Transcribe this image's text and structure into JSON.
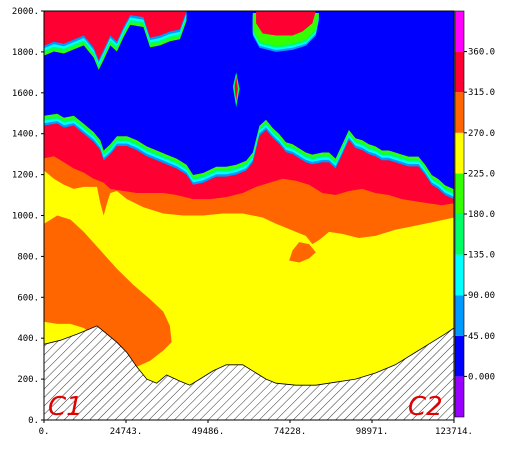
{
  "chart_data": {
    "type": "heatmap",
    "title": "",
    "xlabel": "",
    "ylabel": "",
    "x_ticks": [
      "0.",
      "24743.",
      "49486.",
      "74228.",
      "98971.",
      "123714."
    ],
    "y_ticks": [
      "0.",
      "200.",
      "400.",
      "600.",
      "800.",
      "1000.",
      "1200.",
      "1400.",
      "1600.",
      "1800.",
      "2000."
    ],
    "xlim": [
      0,
      123714
    ],
    "ylim": [
      0,
      2000
    ],
    "corner_labels": {
      "left": "C1",
      "right": "C2"
    },
    "colorbar": {
      "labels": [
        "0.000",
        "45.00",
        "90.00",
        "135.0",
        "180.0",
        "225.0",
        "270.0",
        "315.0",
        "360.0"
      ],
      "range": [
        -45,
        405
      ],
      "bands": [
        {
          "from": -45,
          "to": 0,
          "color": "#9900ff"
        },
        {
          "from": 0,
          "to": 45,
          "color": "#0000ff"
        },
        {
          "from": 45,
          "to": 90,
          "color": "#0099ff"
        },
        {
          "from": 90,
          "to": 135,
          "color": "#00ffff"
        },
        {
          "from": 135,
          "to": 180,
          "color": "#00ff66"
        },
        {
          "from": 180,
          "to": 225,
          "color": "#33ff00"
        },
        {
          "from": 225,
          "to": 270,
          "color": "#ffff00"
        },
        {
          "from": 270,
          "to": 315,
          "color": "#ff6600"
        },
        {
          "from": 315,
          "to": 360,
          "color": "#ff0033"
        },
        {
          "from": 360,
          "to": 405,
          "color": "#ff00ff"
        }
      ]
    },
    "colors": {
      "topography_hatch": "#000000",
      "above_range": "#ff00ff",
      "cold": "#0000ff",
      "transition": [
        "#0099ff",
        "#00ffff",
        "#00ff66",
        "#33ff00"
      ],
      "red": "#ff0033",
      "orange": "#ff6600",
      "yellow": "#ffff00"
    },
    "regions": {
      "terrain_top": [
        [
          0,
          370
        ],
        [
          5000,
          390
        ],
        [
          10000,
          420
        ],
        [
          13000,
          440
        ],
        [
          16000,
          460
        ],
        [
          19000,
          420
        ],
        [
          22000,
          380
        ],
        [
          25000,
          330
        ],
        [
          28000,
          260
        ],
        [
          31000,
          200
        ],
        [
          34000,
          180
        ],
        [
          37000,
          220
        ],
        [
          41000,
          190
        ],
        [
          44000,
          170
        ],
        [
          47000,
          200
        ],
        [
          51000,
          240
        ],
        [
          55000,
          270
        ],
        [
          60000,
          270
        ],
        [
          64000,
          230
        ],
        [
          67000,
          200
        ],
        [
          70000,
          180
        ],
        [
          76000,
          170
        ],
        [
          82000,
          170
        ],
        [
          88000,
          185
        ],
        [
          94000,
          200
        ],
        [
          100000,
          230
        ],
        [
          106000,
          270
        ],
        [
          112000,
          330
        ],
        [
          117000,
          380
        ],
        [
          121000,
          420
        ],
        [
          123714,
          450
        ]
      ],
      "orange_top": [
        [
          0,
          1280
        ],
        [
          3000,
          1290
        ],
        [
          6000,
          1260
        ],
        [
          9000,
          1230
        ],
        [
          12000,
          1210
        ],
        [
          15000,
          1180
        ],
        [
          18000,
          1160
        ],
        [
          20000,
          1130
        ],
        [
          24000,
          1120
        ],
        [
          28000,
          1110
        ],
        [
          32000,
          1110
        ],
        [
          36000,
          1110
        ],
        [
          40000,
          1100
        ],
        [
          45000,
          1080
        ],
        [
          50000,
          1080
        ],
        [
          55000,
          1090
        ],
        [
          60000,
          1110
        ],
        [
          64000,
          1140
        ],
        [
          68000,
          1160
        ],
        [
          72000,
          1180
        ],
        [
          76000,
          1170
        ],
        [
          80000,
          1150
        ],
        [
          84000,
          1110
        ],
        [
          88000,
          1100
        ],
        [
          92000,
          1120
        ],
        [
          96000,
          1130
        ],
        [
          100000,
          1110
        ],
        [
          104000,
          1100
        ],
        [
          108000,
          1080
        ],
        [
          112000,
          1070
        ],
        [
          116000,
          1060
        ],
        [
          120000,
          1050
        ],
        [
          123714,
          1060
        ]
      ],
      "yellow_top": [
        [
          0,
          1220
        ],
        [
          3000,
          1180
        ],
        [
          6000,
          1150
        ],
        [
          9000,
          1130
        ],
        [
          12000,
          1140
        ],
        [
          15000,
          1140
        ],
        [
          16000,
          1140
        ],
        [
          17000,
          1060
        ],
        [
          18000,
          1000
        ],
        [
          19000,
          1060
        ],
        [
          20000,
          1110
        ],
        [
          22000,
          1120
        ],
        [
          25000,
          1080
        ],
        [
          30000,
          1040
        ],
        [
          36000,
          1010
        ],
        [
          42000,
          1000
        ],
        [
          48000,
          1000
        ],
        [
          54000,
          1010
        ],
        [
          60000,
          1010
        ],
        [
          66000,
          990
        ],
        [
          70000,
          960
        ],
        [
          73000,
          940
        ],
        [
          76000,
          920
        ],
        [
          79000,
          900
        ],
        [
          81000,
          860
        ],
        [
          83000,
          880
        ],
        [
          86000,
          920
        ],
        [
          90000,
          910
        ],
        [
          95000,
          890
        ],
        [
          100000,
          900
        ],
        [
          106000,
          930
        ],
        [
          112000,
          950
        ],
        [
          118000,
          970
        ],
        [
          123714,
          990
        ]
      ],
      "orange_blob": [
        [
          0,
          480
        ],
        [
          0,
          960
        ],
        [
          4000,
          1000
        ],
        [
          8000,
          980
        ],
        [
          12000,
          920
        ],
        [
          17000,
          830
        ],
        [
          22000,
          740
        ],
        [
          27000,
          660
        ],
        [
          32000,
          590
        ],
        [
          36000,
          530
        ],
        [
          38000,
          460
        ],
        [
          38500,
          380
        ],
        [
          36000,
          340
        ],
        [
          32000,
          290
        ],
        [
          28000,
          260
        ],
        [
          24000,
          280
        ],
        [
          20000,
          340
        ],
        [
          16000,
          400
        ],
        [
          12000,
          450
        ],
        [
          8000,
          470
        ],
        [
          4000,
          470
        ]
      ],
      "orange_pocket": [
        [
          74000,
          780
        ],
        [
          77000,
          770
        ],
        [
          80000,
          790
        ],
        [
          82000,
          820
        ],
        [
          80000,
          860
        ],
        [
          77000,
          870
        ],
        [
          75000,
          830
        ]
      ],
      "red_top": [
        [
          0,
          1440
        ],
        [
          4000,
          1450
        ],
        [
          6000,
          1430
        ],
        [
          9000,
          1440
        ],
        [
          12000,
          1400
        ],
        [
          15000,
          1360
        ],
        [
          17000,
          1320
        ],
        [
          18000,
          1270
        ],
        [
          20000,
          1300
        ],
        [
          22000,
          1340
        ],
        [
          25000,
          1340
        ],
        [
          28000,
          1320
        ],
        [
          31000,
          1290
        ],
        [
          34000,
          1270
        ],
        [
          37000,
          1250
        ],
        [
          40000,
          1230
        ],
        [
          43000,
          1200
        ],
        [
          45000,
          1150
        ],
        [
          48000,
          1160
        ],
        [
          52000,
          1190
        ],
        [
          55000,
          1190
        ],
        [
          58000,
          1200
        ],
        [
          61000,
          1220
        ],
        [
          63000,
          1260
        ],
        [
          65000,
          1390
        ],
        [
          67000,
          1420
        ],
        [
          69000,
          1380
        ],
        [
          71000,
          1350
        ],
        [
          73000,
          1310
        ],
        [
          75000,
          1300
        ],
        [
          77000,
          1280
        ],
        [
          79000,
          1260
        ],
        [
          81000,
          1250
        ],
        [
          84000,
          1260
        ],
        [
          86000,
          1260
        ],
        [
          88000,
          1230
        ],
        [
          90000,
          1300
        ],
        [
          92000,
          1370
        ],
        [
          94000,
          1330
        ],
        [
          96000,
          1320
        ],
        [
          98000,
          1300
        ],
        [
          100000,
          1290
        ],
        [
          102000,
          1270
        ],
        [
          104000,
          1270
        ],
        [
          106000,
          1260
        ],
        [
          108000,
          1250
        ],
        [
          110000,
          1240
        ],
        [
          113000,
          1240
        ],
        [
          115000,
          1200
        ],
        [
          117000,
          1150
        ],
        [
          119000,
          1130
        ],
        [
          121000,
          1100
        ],
        [
          123714,
          1080
        ]
      ],
      "red_bottom": [
        [
          0,
          1260
        ],
        [
          3000,
          1270
        ],
        [
          6000,
          1230
        ],
        [
          9000,
          1210
        ],
        [
          12000,
          1200
        ],
        [
          15000,
          1180
        ],
        [
          18000,
          1160
        ],
        [
          21000,
          1140
        ],
        [
          24000,
          1140
        ],
        [
          28000,
          1130
        ],
        [
          32000,
          1120
        ],
        [
          36000,
          1110
        ],
        [
          40000,
          1100
        ],
        [
          44000,
          1080
        ],
        [
          48000,
          1080
        ],
        [
          52000,
          1080
        ],
        [
          56000,
          1090
        ],
        [
          60000,
          1110
        ],
        [
          64000,
          1140
        ],
        [
          68000,
          1160
        ],
        [
          72000,
          1180
        ],
        [
          76000,
          1170
        ],
        [
          80000,
          1150
        ],
        [
          84000,
          1110
        ],
        [
          88000,
          1100
        ],
        [
          92000,
          1120
        ],
        [
          96000,
          1130
        ],
        [
          100000,
          1110
        ],
        [
          104000,
          1100
        ],
        [
          108000,
          1080
        ],
        [
          112000,
          1070
        ],
        [
          116000,
          1060
        ],
        [
          120000,
          1050
        ],
        [
          123714,
          1060
        ]
      ],
      "upper_red_top": [
        [
          0,
          1870
        ],
        [
          3000,
          1890
        ],
        [
          6000,
          1880
        ],
        [
          9000,
          1900
        ],
        [
          12000,
          1920
        ],
        [
          15000,
          1860
        ],
        [
          16500,
          1790
        ],
        [
          18000,
          1850
        ],
        [
          20000,
          1920
        ],
        [
          22000,
          1890
        ],
        [
          24000,
          1960
        ],
        [
          26000,
          2000
        ],
        [
          30000,
          2000
        ],
        [
          32000,
          1900
        ],
        [
          35000,
          1910
        ],
        [
          38000,
          1930
        ],
        [
          41000,
          1940
        ],
        [
          43000,
          2000
        ],
        [
          123714,
          2000
        ]
      ],
      "upper_red_base": [
        [
          0,
          1830
        ],
        [
          3000,
          1850
        ],
        [
          6000,
          1840
        ],
        [
          9000,
          1860
        ],
        [
          12000,
          1880
        ],
        [
          15000,
          1820
        ],
        [
          16500,
          1760
        ],
        [
          18000,
          1810
        ],
        [
          20000,
          1880
        ],
        [
          22000,
          1850
        ],
        [
          24000,
          1920
        ],
        [
          26000,
          1980
        ],
        [
          30000,
          1970
        ],
        [
          32000,
          1870
        ],
        [
          35000,
          1880
        ],
        [
          38000,
          1900
        ],
        [
          41000,
          1910
        ],
        [
          43000,
          2000
        ]
      ],
      "plume_edge": [
        [
          63000,
          2000
        ],
        [
          63000,
          1920
        ],
        [
          65000,
          1860
        ],
        [
          70000,
          1840
        ],
        [
          75000,
          1850
        ],
        [
          79000,
          1870
        ],
        [
          82000,
          1920
        ],
        [
          83000,
          2000
        ]
      ],
      "plume_red": [
        [
          64000,
          2000
        ],
        [
          64000,
          1940
        ],
        [
          66000,
          1890
        ],
        [
          70000,
          1880
        ],
        [
          75000,
          1880
        ],
        [
          78000,
          1900
        ],
        [
          81000,
          1940
        ],
        [
          82000,
          2000
        ]
      ],
      "red_spike": [
        [
          57000,
          1630
        ],
        [
          58000,
          1700
        ],
        [
          59000,
          1620
        ],
        [
          58000,
          1530
        ]
      ],
      "red_spike_core": [
        [
          57500,
          1630
        ],
        [
          58000,
          1680
        ],
        [
          58500,
          1620
        ],
        [
          58000,
          1560
        ]
      ]
    }
  }
}
